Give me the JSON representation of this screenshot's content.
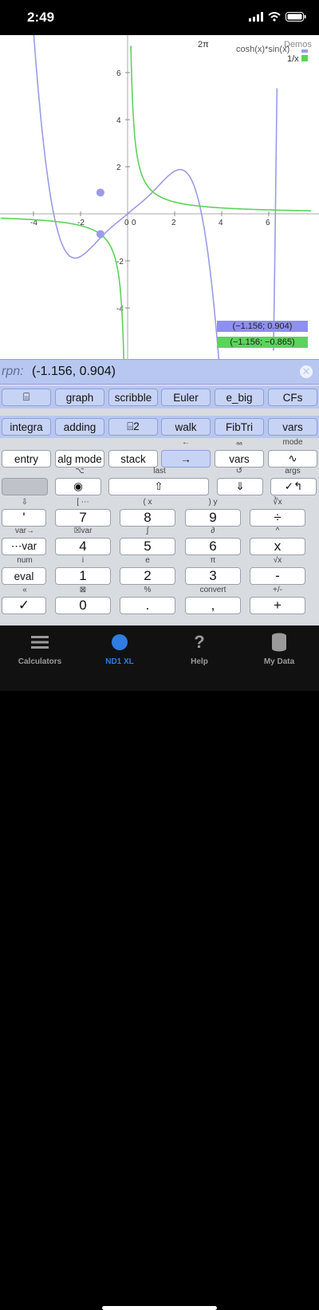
{
  "status": {
    "time": "2:49"
  },
  "graph": {
    "top_label": "2π",
    "demos": "Demos",
    "legend": [
      {
        "label": "cosh(x)*sin(x)",
        "color": "#9b9be8"
      },
      {
        "label": "1/x",
        "color": "#5dd25d"
      }
    ],
    "x_ticks": [
      "-4",
      "-2",
      "0",
      "2",
      "4",
      "6"
    ],
    "y_ticks": [
      "6",
      "4",
      "2",
      "0",
      "-2",
      "-4"
    ],
    "coord_blue": "(−1.156; 0.904)",
    "coord_green": "(−1.156; −0.865)",
    "colors": {
      "blue": "#9b9be8",
      "green": "#5dd25d",
      "axis": "#aaaaaa"
    }
  },
  "chart_data": {
    "type": "line",
    "series": [
      {
        "name": "cosh(x)*sin(x)"
      },
      {
        "name": "1/x"
      }
    ],
    "points": [
      {
        "x": -1.156,
        "y": 0.904
      },
      {
        "x": -1.156,
        "y": -0.865
      }
    ]
  },
  "rpn": {
    "label": "rpn:",
    "value": "(-1.156, 0.904)"
  },
  "rows": {
    "r1": [
      "⌸",
      "graph",
      "scribble",
      "Euler",
      "e_big",
      "CFs"
    ],
    "r2": [
      "integra",
      "adding",
      "⌸2",
      "walk",
      "FibTri",
      "vars"
    ],
    "r3": [
      "entry",
      "alg mode",
      "stack",
      "→",
      "vars",
      "∿"
    ],
    "r3_above": [
      "",
      "",
      "",
      "←",
      "ₐₐ",
      "mode"
    ],
    "r4_above": [
      "",
      "⌥",
      "last",
      "↺",
      "args",
      ""
    ],
    "r4": [
      "",
      "◉",
      "⇧",
      "⇓",
      "✓↰"
    ],
    "r5_above": [
      "⇩",
      "[ ⋯",
      "( x",
      ") y",
      "∛x"
    ],
    "r5": [
      "'",
      "7",
      "8",
      "9",
      "÷"
    ],
    "r6_above": [
      "var→",
      "☒var",
      "∫",
      "∂",
      "^"
    ],
    "r6": [
      "⋯var",
      "4",
      "5",
      "6",
      "x"
    ],
    "r7_above": [
      "num",
      "i",
      "e",
      "π",
      "√x"
    ],
    "r7": [
      "eval",
      "1",
      "2",
      "3",
      "-"
    ],
    "r8_above": [
      "«",
      "⊠",
      "%",
      "convert",
      "+/-"
    ],
    "r8": [
      "✓",
      "0",
      ".",
      ",",
      "+"
    ]
  },
  "tabs": [
    {
      "label": "Calculators"
    },
    {
      "label": "ND1 XL"
    },
    {
      "label": "Help"
    },
    {
      "label": "My Data"
    }
  ]
}
